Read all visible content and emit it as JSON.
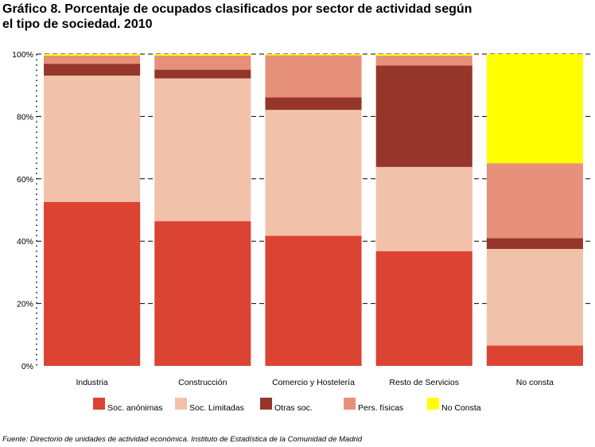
{
  "title": "Gráfico 8. Porcentaje de ocupados clasificados por sector de actividad según el tipo de sociedad. 2010",
  "source": "Fuente: Directorio de unidades de actividad económica. Instituto de Estadística de la Comunidad de Madrid",
  "chart_data": {
    "type": "bar",
    "stacked": true,
    "categories": [
      "Industria",
      "Construcción",
      "Comercio y Hostelería",
      "Resto de Servicios",
      "No consta"
    ],
    "series": [
      {
        "name": "Soc. anónimas",
        "color": "#db4332",
        "values": [
          52.6,
          46.4,
          41.7,
          36.8,
          6.5
        ]
      },
      {
        "name": "Soc. Limitadas",
        "color": "#f2c1aa",
        "values": [
          40.5,
          45.8,
          40.4,
          27.0,
          31.0
        ]
      },
      {
        "name": "Otras soc.",
        "color": "#96362b",
        "values": [
          3.8,
          2.8,
          4.0,
          32.5,
          3.5
        ]
      },
      {
        "name": "Pers. físicas",
        "color": "#e8917a",
        "values": [
          2.6,
          4.5,
          13.5,
          3.2,
          24.0
        ]
      },
      {
        "name": "No Consta",
        "color": "#ffff00",
        "values": [
          0.5,
          0.5,
          0.4,
          0.5,
          35.0
        ]
      }
    ],
    "y_ticks": [
      "0%",
      "20%",
      "40%",
      "60%",
      "80%",
      "100%"
    ],
    "ylim": [
      0,
      100
    ],
    "grid": true,
    "legend_position": "bottom"
  }
}
